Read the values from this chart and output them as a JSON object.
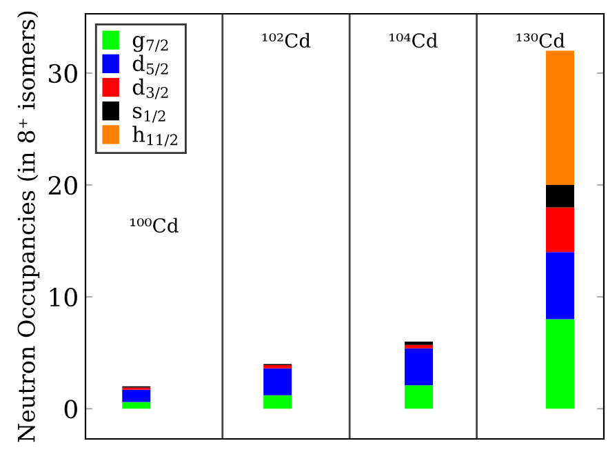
{
  "chart_data": {
    "type": "bar",
    "stacked": true,
    "ylabel": "Neutron Occupancies (in 8⁺ isomers)",
    "categories": [
      "¹⁰⁰Cd",
      "¹⁰²Cd",
      "¹⁰⁴Cd",
      "¹³⁰Cd"
    ],
    "series": [
      {
        "name": "g$_{7/2}$",
        "color": "#00ff00",
        "values": [
          0.6,
          1.2,
          2.1,
          8
        ]
      },
      {
        "name": "d$_{5/2}$",
        "color": "#0000ff",
        "values": [
          1.1,
          2.4,
          3.3,
          6
        ]
      },
      {
        "name": "d$_{3/2}$",
        "color": "#ff0000",
        "values": [
          0.2,
          0.3,
          0.3,
          4
        ]
      },
      {
        "name": "s$_{1/2}$",
        "color": "#000000",
        "values": [
          0.1,
          0.1,
          0.3,
          2
        ]
      },
      {
        "name": "h$_{11/2}$",
        "color": "#ff8000",
        "values": [
          0,
          0,
          0,
          12
        ]
      }
    ],
    "ylim": [
      -2.7,
      35.3
    ],
    "yticks": [
      0,
      10,
      20,
      30
    ],
    "legend": "top left",
    "grid": false,
    "tick_labels": "y"
  }
}
